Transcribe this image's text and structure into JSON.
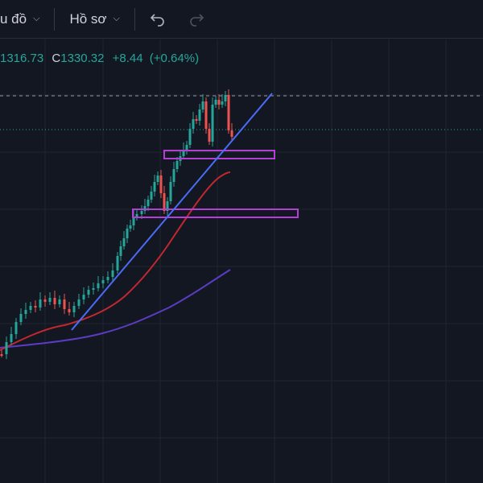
{
  "toolbar": {
    "chart_menu_label": "u đồ",
    "profile_menu_label": "Hồ sơ",
    "undo_icon": "undo-icon",
    "redo_icon": "redo-icon"
  },
  "legend": {
    "low_value": "1316.73",
    "close_label": "C",
    "close_value": "1330.32",
    "change_value": "+8.44",
    "change_percent": "(+0.64%)"
  },
  "colors": {
    "background": "#131722",
    "grid": "#1f2430",
    "up": "#26a69a",
    "down": "#ef5350",
    "trendline": "#4a6cf7",
    "ma_short": "#c2282f",
    "ma_long": "#5b3cc4",
    "zone": "#b53fd6"
  }
}
